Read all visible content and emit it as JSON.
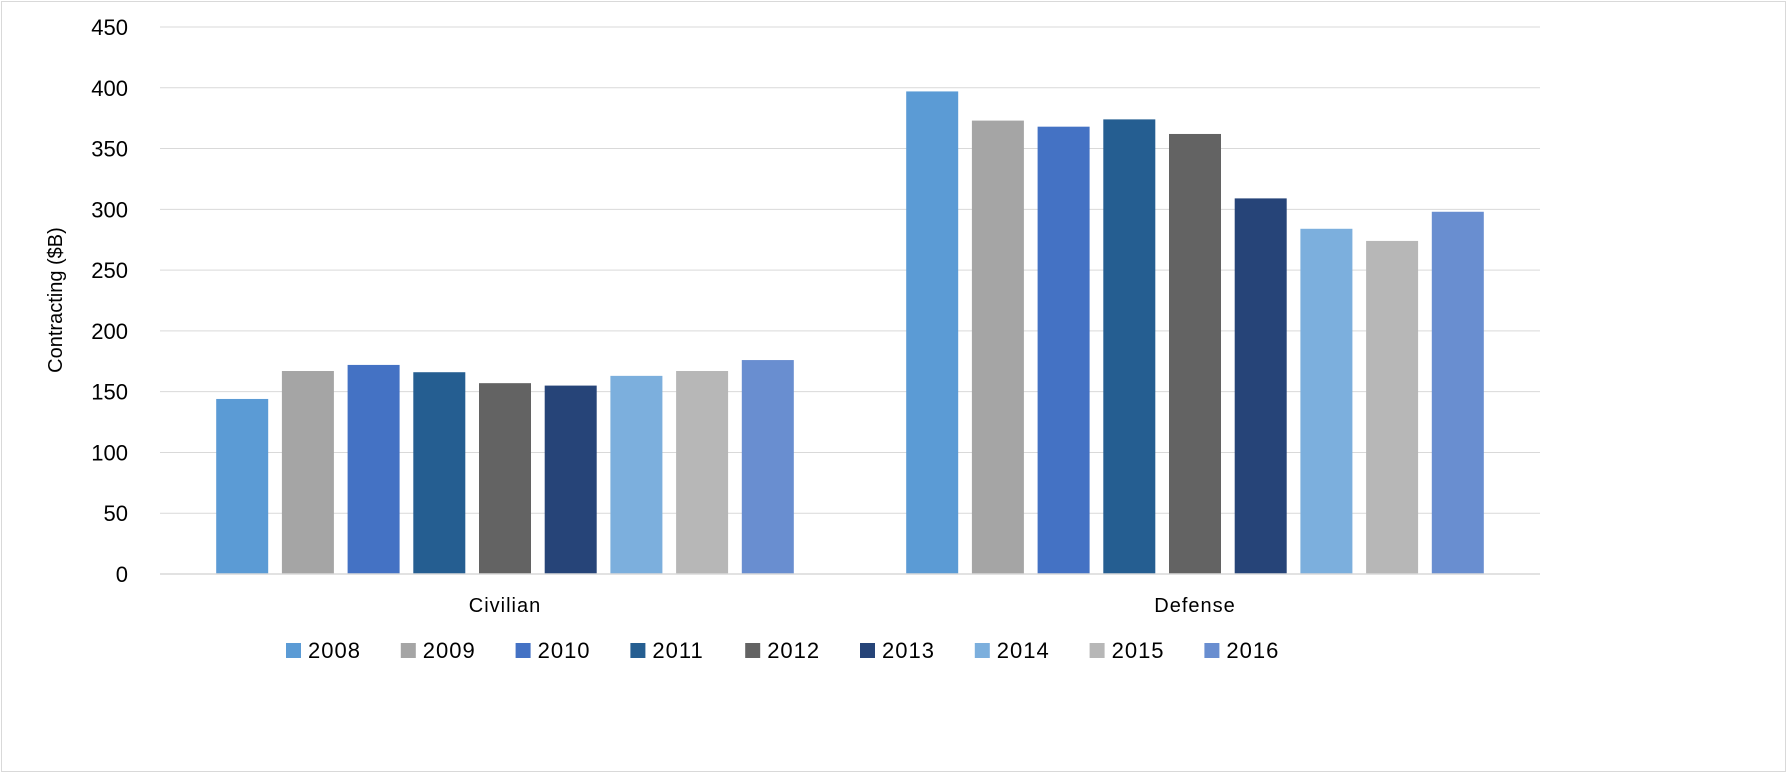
{
  "chart_data": {
    "type": "bar",
    "categories": [
      "Civilian",
      "Defense"
    ],
    "ylabel": "Contracting ($B)",
    "ylim": [
      0,
      450
    ],
    "yticks": [
      0,
      50,
      100,
      150,
      200,
      250,
      300,
      350,
      400,
      450
    ],
    "grid": true,
    "legend_position": "bottom",
    "series": [
      {
        "name": "2008",
        "color": "#5b9bd5",
        "values": [
          144,
          397
        ]
      },
      {
        "name": "2009",
        "color": "#a5a5a5",
        "values": [
          167,
          373
        ]
      },
      {
        "name": "2010",
        "color": "#4472c4",
        "values": [
          172,
          368
        ]
      },
      {
        "name": "2011",
        "color": "#255e91",
        "values": [
          166,
          374
        ]
      },
      {
        "name": "2012",
        "color": "#636363",
        "values": [
          157,
          362
        ]
      },
      {
        "name": "2013",
        "color": "#264478",
        "values": [
          155,
          309
        ]
      },
      {
        "name": "2014",
        "color": "#7cafdd",
        "values": [
          163,
          284
        ]
      },
      {
        "name": "2015",
        "color": "#b7b7b7",
        "values": [
          167,
          274
        ]
      },
      {
        "name": "2016",
        "color": "#698ed0",
        "values": [
          176,
          298
        ]
      }
    ]
  }
}
